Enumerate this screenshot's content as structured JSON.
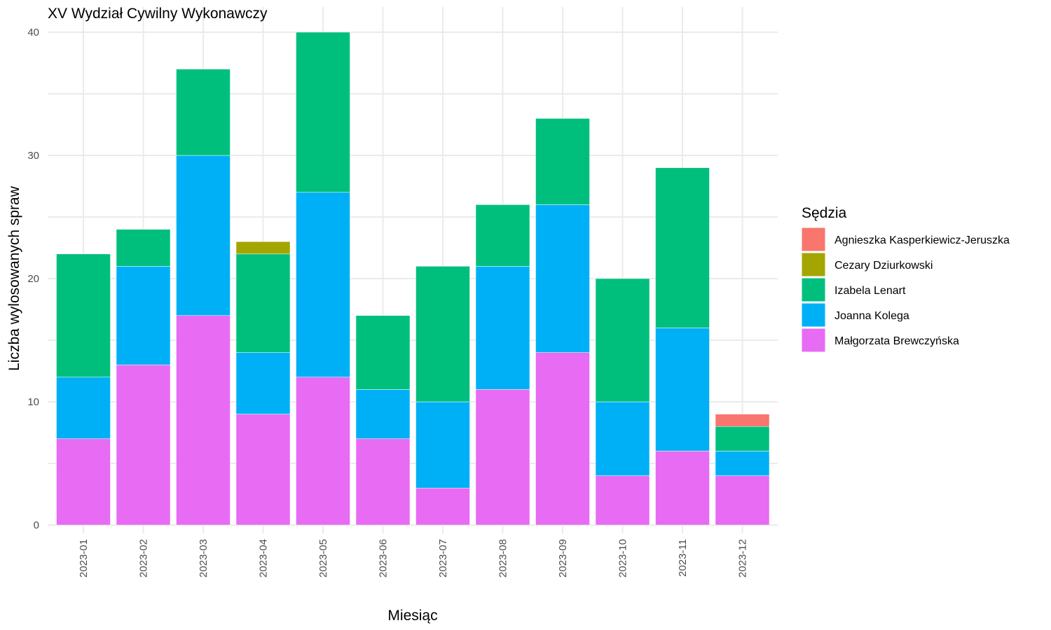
{
  "chart_data": {
    "type": "bar",
    "stacked": true,
    "title": "XV Wydział Cywilny Wykonawczy",
    "xlabel": "Miesiąc",
    "ylabel": "Liczba wylosowanych spraw",
    "ylim": [
      0,
      40
    ],
    "yticks": [
      "0",
      "10",
      "20",
      "30",
      "40"
    ],
    "grid": true,
    "legend": {
      "title": "Sędzia",
      "position": "right"
    },
    "categories": [
      "2023-01",
      "2023-02",
      "2023-03",
      "2023-04",
      "2023-05",
      "2023-06",
      "2023-07",
      "2023-08",
      "2023-09",
      "2023-10",
      "2023-11",
      "2023-12"
    ],
    "series": [
      {
        "name": "Agnieszka Kasperkiewicz-Jeruszka",
        "color": "#F8766D",
        "values": [
          0,
          0,
          0,
          0,
          0,
          0,
          0,
          0,
          0,
          0,
          0,
          1
        ]
      },
      {
        "name": "Cezary Dziurkowski",
        "color": "#A3A500",
        "values": [
          0,
          0,
          0,
          1,
          0,
          0,
          0,
          0,
          0,
          0,
          0,
          0
        ]
      },
      {
        "name": "Izabela Lenart",
        "color": "#00BF7D",
        "values": [
          10,
          3,
          7,
          8,
          13,
          6,
          11,
          5,
          7,
          10,
          13,
          2
        ]
      },
      {
        "name": "Joanna Kolega",
        "color": "#00B0F6",
        "values": [
          5,
          8,
          13,
          5,
          15,
          4,
          7,
          10,
          12,
          6,
          10,
          2
        ]
      },
      {
        "name": "Małgorzata Brewczyńska",
        "color": "#E76BF3",
        "values": [
          7,
          13,
          17,
          9,
          12,
          7,
          3,
          11,
          14,
          4,
          6,
          4
        ]
      }
    ]
  }
}
